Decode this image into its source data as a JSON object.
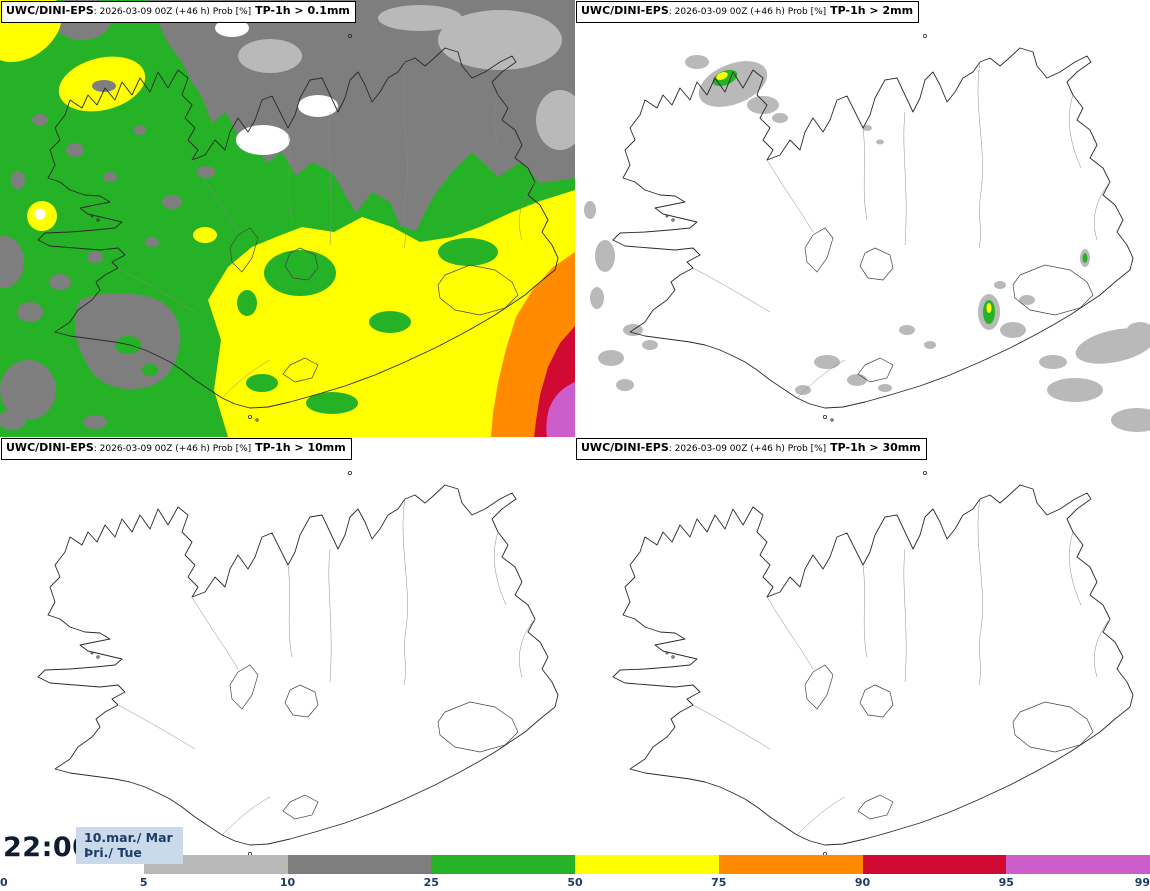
{
  "title": {
    "model": "UWC/DINI-EPS",
    "meta": ": 2026-03-09 00Z (+46 h) Prob [%]"
  },
  "panels": [
    {
      "threshold": "TP-1h > 0.1mm"
    },
    {
      "threshold": "TP-1h > 2mm"
    },
    {
      "threshold": "TP-1h > 10mm"
    },
    {
      "threshold": "TP-1h > 30mm"
    }
  ],
  "footer": {
    "time": "22:00",
    "date": "10.mar./ Mar",
    "weekday": "Þri./ Tue"
  },
  "colorbar": {
    "unit": "Prob [%]",
    "ticks": [
      "0",
      "5",
      "10",
      "25",
      "50",
      "75",
      "90",
      "95",
      "99"
    ],
    "segments": [
      {
        "range": "0-5",
        "color": "#ffffff"
      },
      {
        "range": "5-10",
        "color": "#b9b9b9"
      },
      {
        "range": "10-25",
        "color": "#7e7e7e"
      },
      {
        "range": "25-50",
        "color": "#26b226"
      },
      {
        "range": "50-75",
        "color": "#ffff00"
      },
      {
        "range": "75-90",
        "color": "#ff8a00"
      },
      {
        "range": "90-95",
        "color": "#d10a33"
      },
      {
        "range": "95-99",
        "color": "#cc5ecc"
      }
    ]
  }
}
